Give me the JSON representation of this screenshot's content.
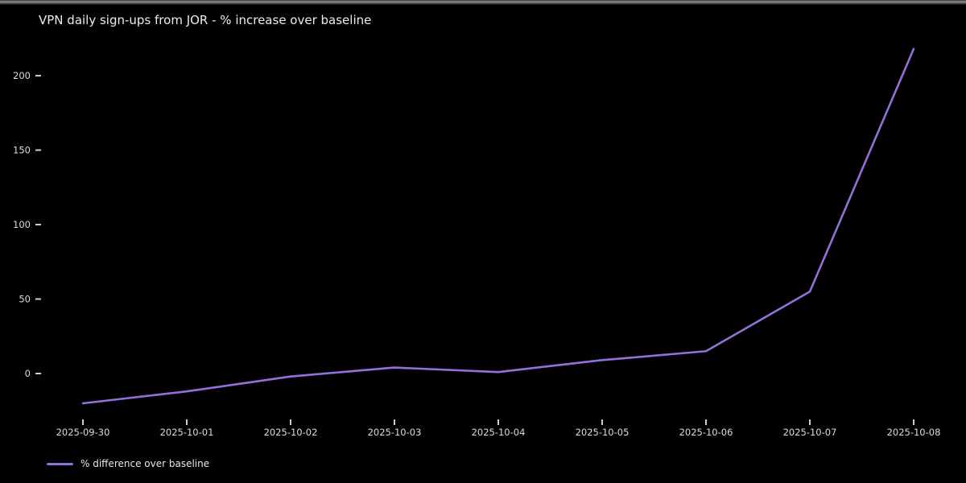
{
  "chart_data": {
    "type": "line",
    "title": "VPN daily sign-ups from JOR - % increase over baseline",
    "x": [
      "2025-09-30",
      "2025-10-01",
      "2025-10-02",
      "2025-10-03",
      "2025-10-04",
      "2025-10-05",
      "2025-10-06",
      "2025-10-07",
      "2025-10-08"
    ],
    "series": [
      {
        "name": "% difference over baseline",
        "values": [
          -20,
          -12,
          -2,
          4,
          1,
          9,
          15,
          55,
          218
        ],
        "color": "#9370db"
      }
    ],
    "xlabel": "",
    "ylabel": "",
    "ylim": [
      -35,
      235
    ],
    "yticks": [
      0,
      50,
      100,
      150,
      200
    ],
    "grid": false,
    "legend_position": "lower-left",
    "background_color": "#000000",
    "text_color": "#ececec",
    "tick_color": "#cfcfcf"
  }
}
